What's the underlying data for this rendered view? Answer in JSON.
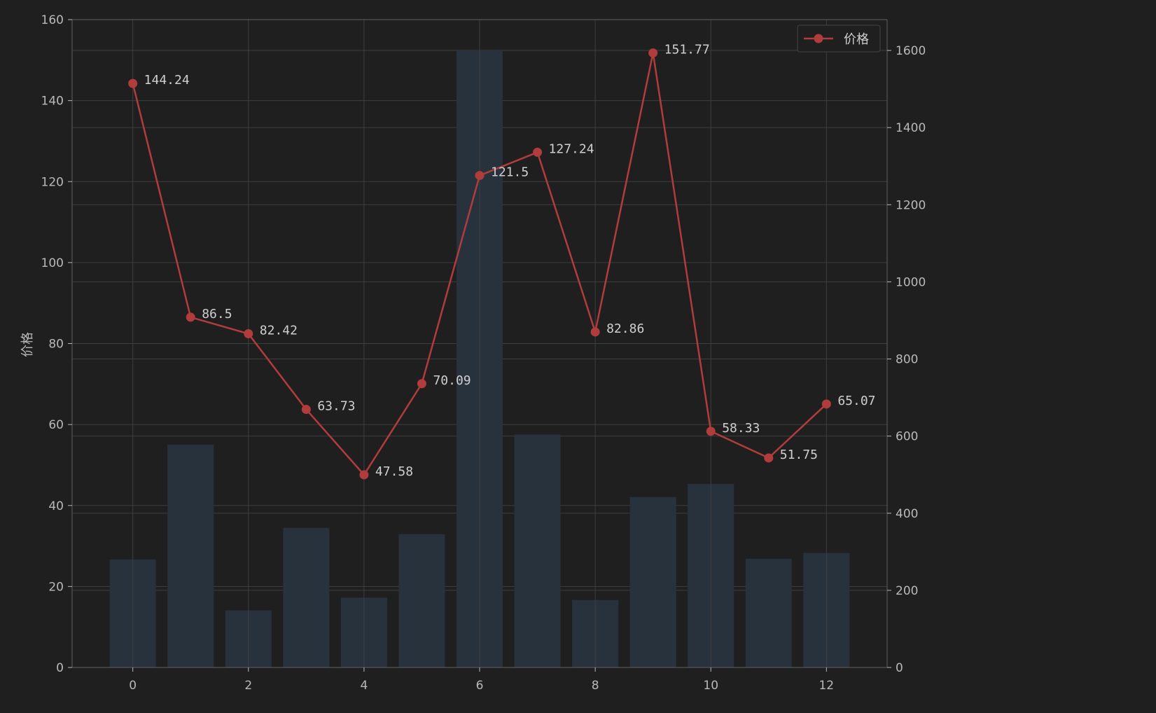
{
  "colors": {
    "background": "#1f1f1f",
    "grid": "#3f3f3f",
    "axis": "#555555",
    "bar": "#27323c",
    "line": "#b13c3c",
    "text": "#b9b9b9"
  },
  "chart_data": {
    "type": "bar+line",
    "x": [
      0,
      1,
      2,
      3,
      4,
      5,
      6,
      7,
      8,
      9,
      10,
      11,
      12
    ],
    "x_ticks": [
      0,
      2,
      4,
      6,
      8,
      10,
      12
    ],
    "xlim": [
      -1.05,
      13.05
    ],
    "y_left": {
      "label": "价格",
      "ylim": [
        0,
        160
      ],
      "ticks": [
        0,
        20,
        40,
        60,
        80,
        100,
        120,
        140,
        160
      ]
    },
    "y_right": {
      "label": "",
      "ylim": [
        0,
        1680
      ],
      "ticks": [
        0,
        200,
        400,
        600,
        800,
        1000,
        1200,
        1400,
        1600
      ]
    },
    "series": [
      {
        "name": "价格",
        "kind": "line",
        "axis": "left",
        "marker": "circle",
        "values": [
          144.24,
          86.5,
          82.42,
          63.73,
          47.58,
          70.09,
          121.5,
          127.24,
          82.86,
          151.77,
          58.33,
          51.75,
          65.07
        ],
        "labels": [
          "144.24",
          "86.5",
          "82.42",
          "63.73",
          "47.58",
          "70.09",
          "121.5",
          "127.24",
          "82.86",
          "151.77",
          "58.33",
          "51.75",
          "65.07"
        ]
      },
      {
        "kind": "bar",
        "axis": "right",
        "values": [
          280,
          578,
          148,
          362,
          181,
          346,
          1600,
          604,
          175,
          442,
          476,
          282,
          297
        ]
      }
    ],
    "legend": {
      "position": "top-right",
      "entries": [
        "价格"
      ]
    },
    "grid": true
  }
}
